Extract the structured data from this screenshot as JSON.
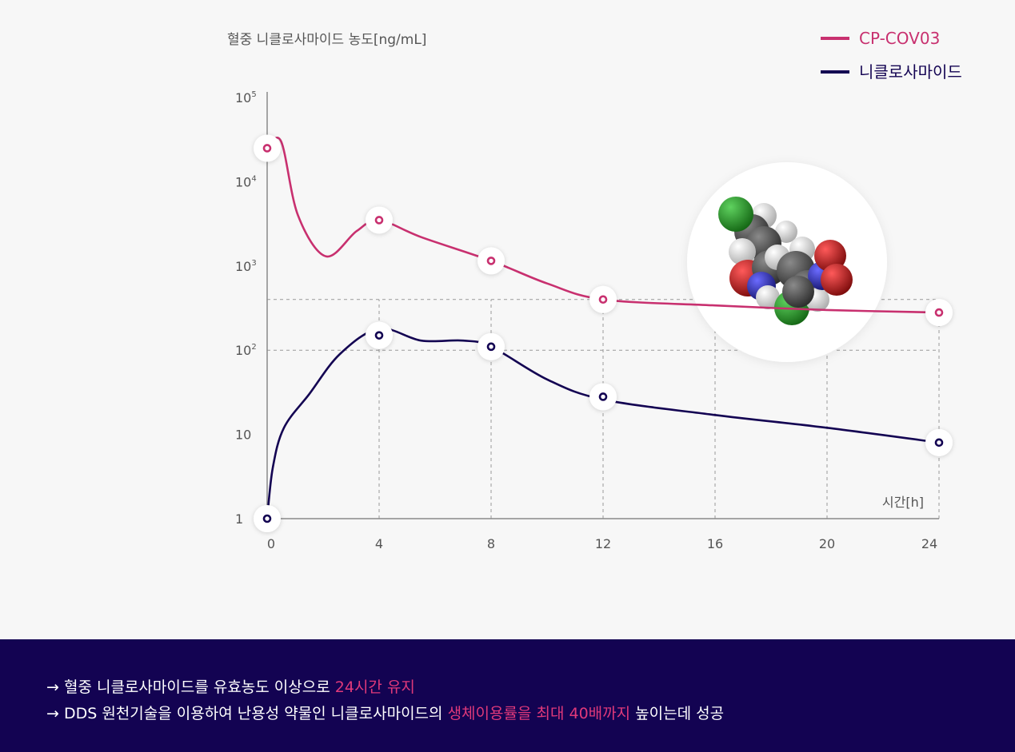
{
  "chart_data": {
    "type": "line",
    "ylabel": "혈중 니클로사마이드 농도[ng/mL]",
    "xlabel": "시간[h]",
    "x_ticks": [
      "0",
      "4",
      "8",
      "12",
      "16",
      "20",
      "24"
    ],
    "y_ticks": [
      {
        "base": "10",
        "exp": "5"
      },
      {
        "base": "10",
        "exp": "4"
      },
      {
        "base": "10",
        "exp": "3"
      },
      {
        "base": "10",
        "exp": "2"
      },
      {
        "base": "10",
        "exp": ""
      },
      {
        "base": "1",
        "exp": ""
      }
    ],
    "y_scale": "log",
    "xlim": [
      0,
      24
    ],
    "ylim": [
      1,
      100000
    ],
    "legend_position": "top-right",
    "series": [
      {
        "name": "CP-COV03",
        "color": "#c8306f",
        "points": [
          [
            0,
            25000
          ],
          [
            4,
            3500
          ],
          [
            8,
            1150
          ],
          [
            12,
            400
          ],
          [
            24,
            280
          ]
        ],
        "curve": [
          [
            0,
            25000
          ],
          [
            0.5,
            30000
          ],
          [
            1.1,
            4000
          ],
          [
            2.1,
            1300
          ],
          [
            3.2,
            2600
          ],
          [
            4,
            3500
          ],
          [
            5.5,
            2200
          ],
          [
            8,
            1150
          ],
          [
            10,
            620
          ],
          [
            12,
            400
          ],
          [
            16,
            340
          ],
          [
            20,
            300
          ],
          [
            24,
            280
          ]
        ]
      },
      {
        "name": "니클로사마이드",
        "color": "#130352",
        "points": [
          [
            0,
            1
          ],
          [
            4,
            150
          ],
          [
            8,
            110
          ],
          [
            12,
            28
          ],
          [
            24,
            8
          ]
        ],
        "curve": [
          [
            0,
            1
          ],
          [
            0.2,
            4
          ],
          [
            0.6,
            12
          ],
          [
            1.5,
            30
          ],
          [
            2.6,
            90
          ],
          [
            4,
            180
          ],
          [
            5.5,
            130
          ],
          [
            7,
            130
          ],
          [
            8,
            110
          ],
          [
            10,
            45
          ],
          [
            12,
            26
          ],
          [
            16,
            17
          ],
          [
            20,
            12
          ],
          [
            24,
            8
          ]
        ]
      }
    ],
    "reference_lines": [
      {
        "y": 100,
        "x_from": 0,
        "x_to": 24
      },
      {
        "y": 400,
        "x_from": 0,
        "x_to": 24
      }
    ]
  },
  "molecule": {
    "name": "니클로사마이드"
  },
  "summary": [
    {
      "prefix": "→ 혈중 니클로사마이드를 유효농도 이상으로 ",
      "highlight": "24시간 유지",
      "suffix": ""
    },
    {
      "prefix": "→ DDS 원천기술을 이용하여 난용성 약물인 니클로사마이드의 ",
      "highlight": "생체이용률을 최대 40배까지",
      "suffix": " 높이는데 성공"
    }
  ]
}
